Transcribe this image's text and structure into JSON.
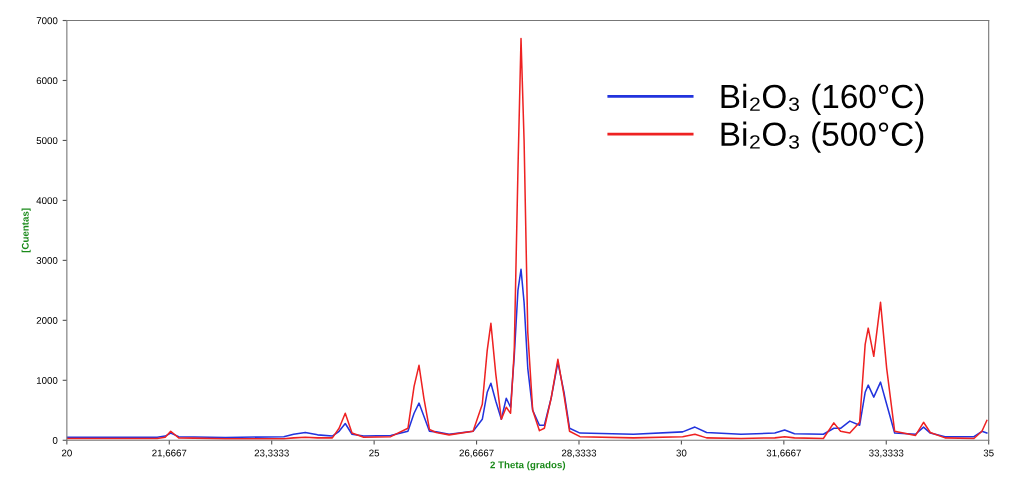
{
  "chart_data": {
    "type": "line",
    "xlabel": "2 Theta (grados)",
    "ylabel": "[Cuentas]",
    "x": [
      20.0,
      20.84,
      21.47,
      21.6,
      21.69,
      21.82,
      22.58,
      23.53,
      23.69,
      23.88,
      24.08,
      24.32,
      24.43,
      24.53,
      24.64,
      24.83,
      25.27,
      25.55,
      25.65,
      25.73,
      25.81,
      25.9,
      26.01,
      26.22,
      26.61,
      26.76,
      26.84,
      26.9,
      26.98,
      27.07,
      27.15,
      27.22,
      27.28,
      27.34,
      27.39,
      27.44,
      27.5,
      27.58,
      27.69,
      27.77,
      27.88,
      27.99,
      28.09,
      28.18,
      28.35,
      29.22,
      30.02,
      30.22,
      30.41,
      30.97,
      31.52,
      31.68,
      31.84,
      32.31,
      32.48,
      32.59,
      32.74,
      32.9,
      32.99,
      33.04,
      33.13,
      33.24,
      33.34,
      33.47,
      33.81,
      33.94,
      34.05,
      34.29,
      34.76,
      34.89,
      34.97
    ],
    "series": [
      {
        "name": "Bi₂O₃ (160°C)",
        "color": "#2233dd",
        "values": [
          50,
          50,
          50,
          70,
          120,
          60,
          45,
          60,
          100,
          130,
          90,
          70,
          150,
          280,
          100,
          70,
          80,
          150,
          450,
          620,
          400,
          150,
          140,
          100,
          150,
          350,
          800,
          950,
          650,
          350,
          700,
          550,
          1400,
          2500,
          2850,
          2300,
          1200,
          500,
          250,
          250,
          700,
          1300,
          800,
          200,
          120,
          100,
          140,
          220,
          130,
          100,
          120,
          170,
          110,
          100,
          200,
          200,
          320,
          250,
          800,
          920,
          720,
          970,
          600,
          120,
          100,
          220,
          120,
          60,
          60,
          150,
          120
        ]
      },
      {
        "name": "Bi₂O₃ (500°C)",
        "color": "#ee2222",
        "values": [
          30,
          30,
          30,
          50,
          150,
          40,
          25,
          25,
          40,
          50,
          40,
          40,
          200,
          450,
          120,
          50,
          60,
          200,
          900,
          1250,
          700,
          180,
          130,
          90,
          150,
          600,
          1500,
          1950,
          1100,
          350,
          550,
          450,
          1500,
          4500,
          6700,
          5000,
          1800,
          500,
          160,
          200,
          700,
          1350,
          750,
          150,
          60,
          40,
          60,
          100,
          40,
          30,
          40,
          60,
          40,
          30,
          290,
          150,
          120,
          300,
          1600,
          1870,
          1400,
          2300,
          1200,
          150,
          80,
          300,
          130,
          40,
          30,
          150,
          330
        ]
      }
    ],
    "xlim": [
      20,
      35
    ],
    "ylim": [
      0,
      7000
    ],
    "xticks": [
      20,
      {
        "value": 21.6667,
        "label": "21,6667"
      },
      {
        "value": 23.3333,
        "label": "23,3333"
      },
      25,
      {
        "value": 26.6667,
        "label": "26,6667"
      },
      {
        "value": 28.3333,
        "label": "28,3333"
      },
      30,
      {
        "value": 31.6667,
        "label": "31,6667"
      },
      {
        "value": 33.3333,
        "label": "33,3333"
      },
      35
    ],
    "yticks": [
      0,
      1000,
      2000,
      3000,
      4000,
      5000,
      6000,
      7000
    ],
    "legend": "top right",
    "grid": false
  }
}
